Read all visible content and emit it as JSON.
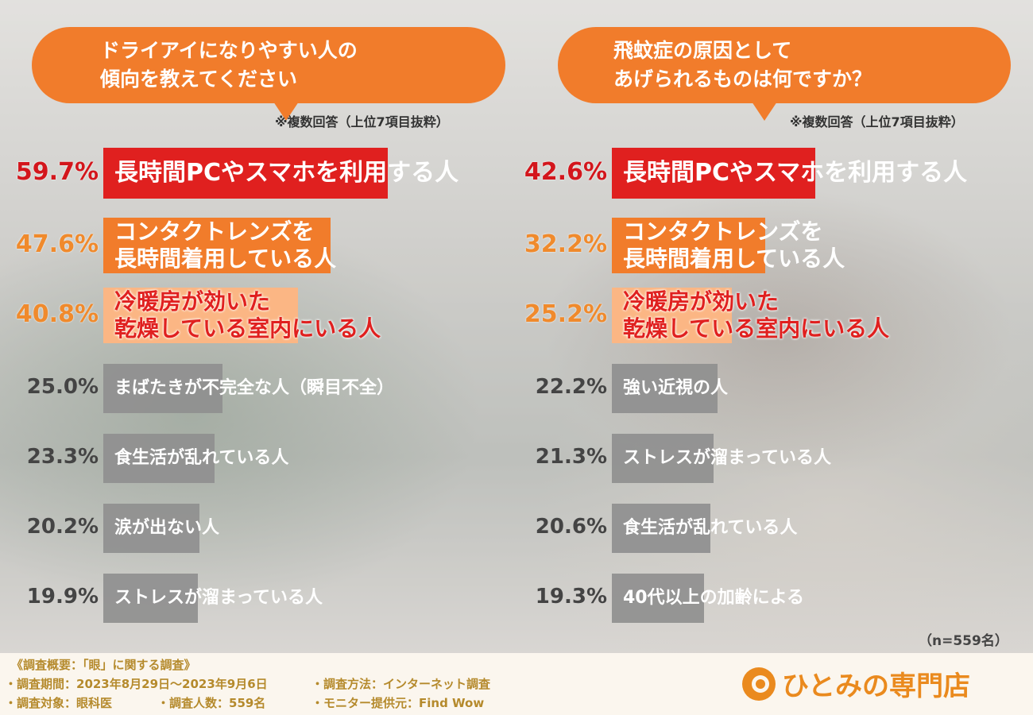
{
  "chart_data": [
    {
      "type": "bar",
      "title": "ドライアイになりやすい人の\n傾向を教えてください",
      "note": "※複数回答（上位7項目抜粋）",
      "categories": [
        "長時間PCやスマホを利用する人",
        "コンタクトレンズを\n長時間着用している人",
        "冷暖房が効いた\n乾燥している室内にいる人",
        "まばたきが不完全な人（瞬目不全）",
        "食生活が乱れている人",
        "涙が出ない人",
        "ストレスが溜まっている人"
      ],
      "values": [
        59.7,
        47.6,
        40.8,
        25.0,
        23.3,
        20.2,
        19.9
      ],
      "value_labels": [
        "59.7%",
        "47.6%",
        "40.8%",
        "25.0%",
        "23.3%",
        "20.2%",
        "19.9%"
      ],
      "xlim": [
        0,
        100
      ]
    },
    {
      "type": "bar",
      "title": "飛蚊症の原因として\nあげられるものは何ですか？",
      "note": "※複数回答（上位7項目抜粋）",
      "categories": [
        "長時間PCやスマホを利用する人",
        "コンタクトレンズを\n長時間着用している人",
        "冷暖房が効いた\n乾燥している室内にいる人",
        "強い近視の人",
        "ストレスが溜まっている人",
        "食生活が乱れている人",
        "40代以上の加齢による"
      ],
      "values": [
        42.6,
        32.2,
        25.2,
        22.2,
        21.3,
        20.6,
        19.3
      ],
      "value_labels": [
        "42.6%",
        "32.2%",
        "25.2%",
        "22.2%",
        "21.3%",
        "20.6%",
        "19.3%"
      ],
      "xlim": [
        0,
        100
      ]
    }
  ],
  "sample_size": "（n=559名）",
  "colors": {
    "rank1_bar": "#e0201f",
    "rank2_bar": "#f17c2b",
    "rank3_bar": "#fbb684",
    "other_bar": "#8f8f8f",
    "rank1_text": "#d3161c",
    "rank2_text": "#f08a2c",
    "rank3_text": "#f08a2c",
    "other_text": "#444444",
    "bubble": "#f17c2b"
  },
  "footer": {
    "heading": "《調査概要：「眼」に関する調査》",
    "period": "・調査期間：2023年8月29日〜2023年9月6日",
    "method": "・調査方法：インターネット調査",
    "target": "・調査対象：眼科医",
    "count": "・調査人数：559名",
    "provider": "・モニター提供元：Find Wow"
  },
  "logo": {
    "brand": "ひとみの専門店",
    "icon": "c-logo-icon"
  }
}
